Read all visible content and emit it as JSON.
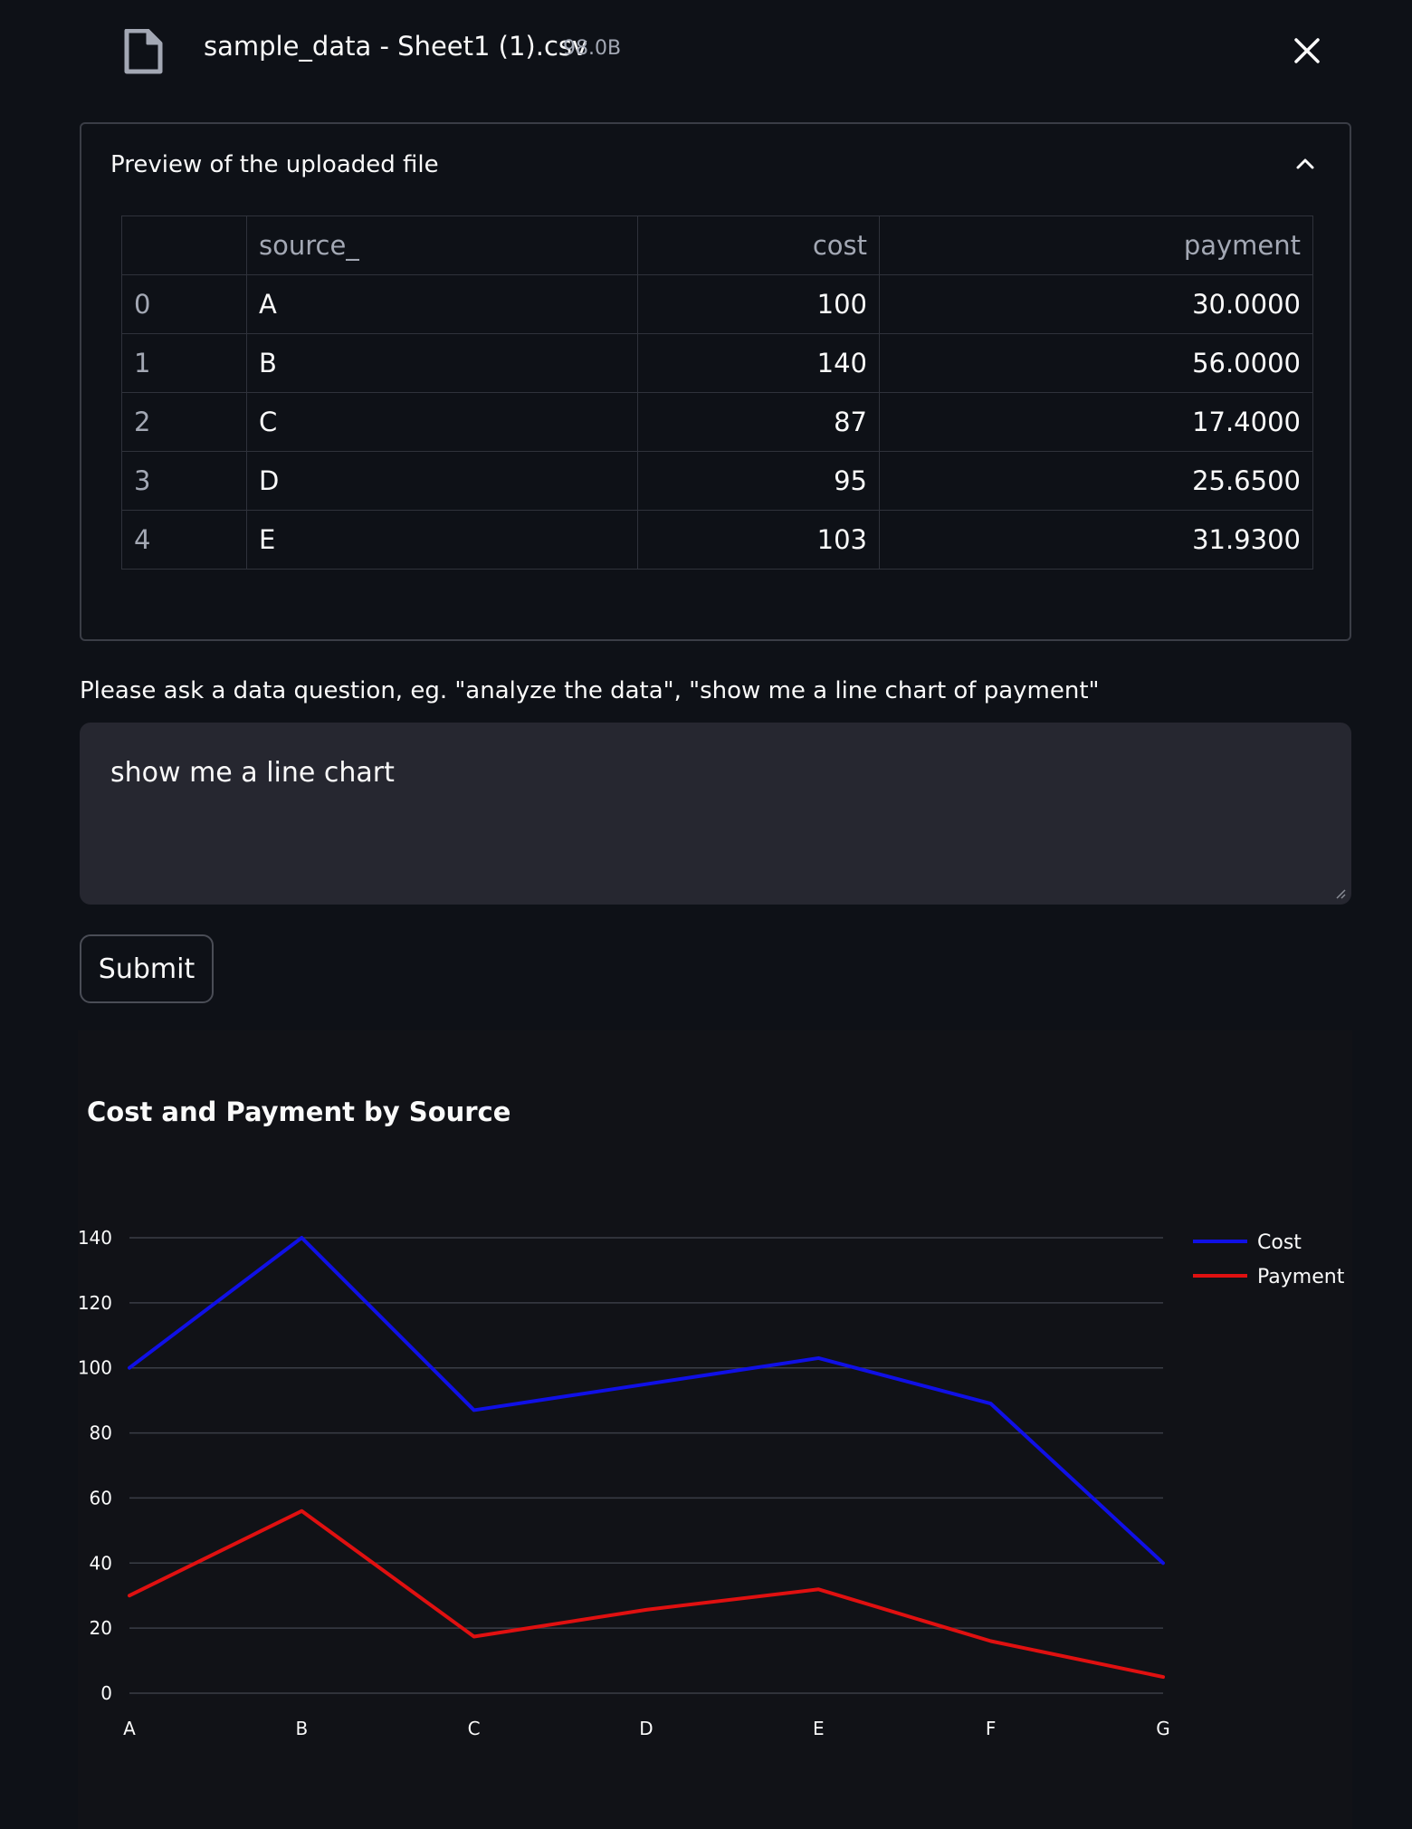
{
  "file": {
    "name": "sample_data - Sheet1 (1).csv",
    "size": "98.0B",
    "icon": "file-icon",
    "close_icon": "close-icon"
  },
  "expander": {
    "title": "Preview of the uploaded file",
    "icon": "chevron-up-icon"
  },
  "table": {
    "columns": [
      "",
      "source_",
      "cost",
      "payment"
    ],
    "rows": [
      [
        "0",
        "A",
        "100",
        "30.0000"
      ],
      [
        "1",
        "B",
        "140",
        "56.0000"
      ],
      [
        "2",
        "C",
        "87",
        "17.4000"
      ],
      [
        "3",
        "D",
        "95",
        "25.6500"
      ],
      [
        "4",
        "E",
        "103",
        "31.9300"
      ]
    ]
  },
  "question": {
    "label": "Please ask a data question, eg. \"analyze the data\", \"show me a line chart of payment\"",
    "value": "show me a line chart"
  },
  "submit": {
    "label": "Submit"
  },
  "chart_data": {
    "type": "line",
    "title": "Cost and Payment by Source",
    "xlabel": "",
    "ylabel": "",
    "categories": [
      "A",
      "B",
      "C",
      "D",
      "E",
      "F",
      "G"
    ],
    "series": [
      {
        "name": "Cost",
        "values": [
          100,
          140,
          87,
          95,
          103,
          89,
          40
        ],
        "color": "#1010e6"
      },
      {
        "name": "Payment",
        "values": [
          30,
          56,
          17.4,
          25.65,
          31.93,
          16,
          5
        ],
        "color": "#e01010"
      }
    ],
    "yticks": [
      0,
      20,
      40,
      60,
      80,
      100,
      120,
      140
    ],
    "ylim": [
      0,
      140
    ],
    "grid": true,
    "legend_position": "top-right"
  },
  "colors": {
    "background": "#0e1117",
    "chart_background": "#111217",
    "text": "#fafafa",
    "muted_text": "#a3a8b4",
    "input_background": "#262730"
  }
}
